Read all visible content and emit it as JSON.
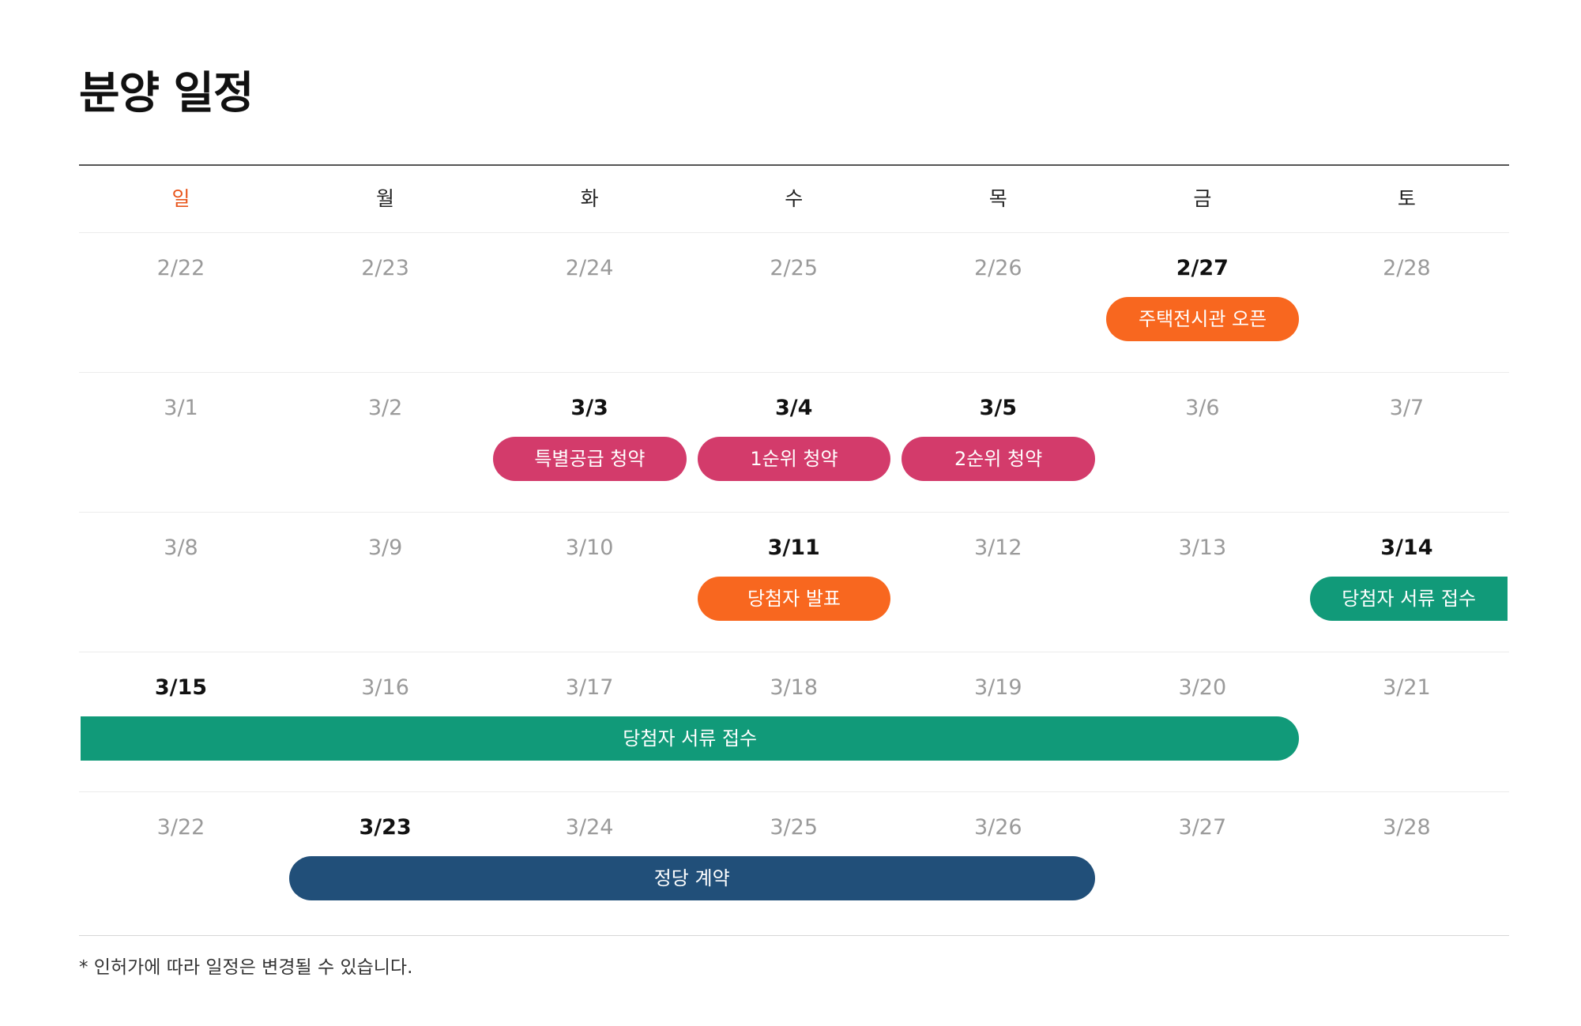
{
  "title": "분양 일정",
  "colors": {
    "sunday": "#e8541a",
    "orange": "#f8671f",
    "pink": "#d33b6b",
    "green": "#119a79",
    "navy": "#214f79"
  },
  "weekdays": [
    "일",
    "월",
    "화",
    "수",
    "목",
    "금",
    "토"
  ],
  "weeks": [
    {
      "days": [
        "2/22",
        "2/23",
        "2/24",
        "2/25",
        "2/26",
        "2/27",
        "2/28"
      ],
      "active": [
        5
      ],
      "events": [
        {
          "label": "주택전시관 오픈",
          "start": 5,
          "span": 1,
          "color": "orange",
          "open": "none"
        }
      ]
    },
    {
      "days": [
        "3/1",
        "3/2",
        "3/3",
        "3/4",
        "3/5",
        "3/6",
        "3/7"
      ],
      "active": [
        2,
        3,
        4
      ],
      "events": [
        {
          "label": "특별공급 청약",
          "start": 2,
          "span": 1,
          "color": "pink",
          "open": "none"
        },
        {
          "label": "1순위 청약",
          "start": 3,
          "span": 1,
          "color": "pink",
          "open": "none"
        },
        {
          "label": "2순위 청약",
          "start": 4,
          "span": 1,
          "color": "pink",
          "open": "none"
        }
      ]
    },
    {
      "days": [
        "3/8",
        "3/9",
        "3/10",
        "3/11",
        "3/12",
        "3/13",
        "3/14"
      ],
      "active": [
        3,
        6
      ],
      "events": [
        {
          "label": "당첨자 발표",
          "start": 3,
          "span": 1,
          "color": "orange",
          "open": "none"
        },
        {
          "label": "당첨자 서류 접수",
          "start": 6,
          "span": 1,
          "color": "green",
          "open": "right"
        }
      ]
    },
    {
      "days": [
        "3/15",
        "3/16",
        "3/17",
        "3/18",
        "3/19",
        "3/20",
        "3/21"
      ],
      "active": [
        0
      ],
      "events": [
        {
          "label": "당첨자 서류 접수",
          "start": 0,
          "span": 6,
          "color": "green",
          "open": "left"
        }
      ]
    },
    {
      "days": [
        "3/22",
        "3/23",
        "3/24",
        "3/25",
        "3/26",
        "3/27",
        "3/28"
      ],
      "active": [
        1
      ],
      "events": [
        {
          "label": "정당 계약",
          "start": 1,
          "span": 4,
          "color": "navy",
          "open": "none"
        }
      ]
    }
  ],
  "footnote": "* 인허가에 따라 일정은 변경될 수 있습니다."
}
